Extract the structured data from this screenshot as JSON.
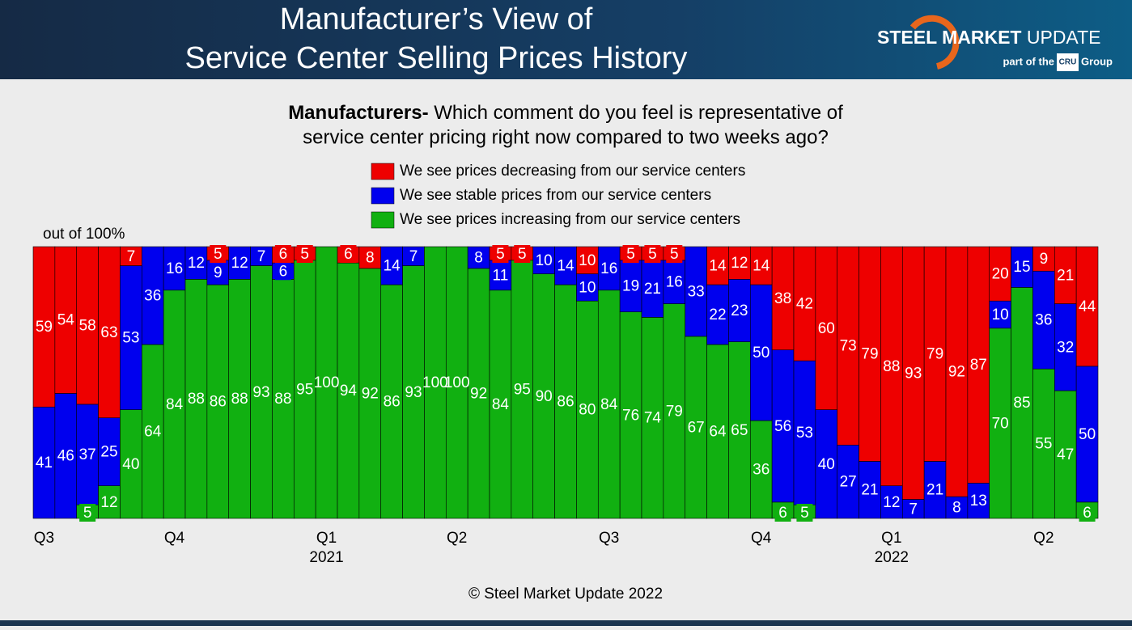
{
  "header": {
    "title": [
      "Manufacturer’s View of",
      "Service Center Selling Prices History"
    ],
    "brand_bold": "STEEL MARKET",
    "brand_rest": "UPDATE",
    "tagline_pre": "part of the",
    "tagline_logo": "CRU",
    "tagline_post": "Group"
  },
  "chart_data": {
    "type": "stacked-bar",
    "subtitle_lead": "Manufacturers-",
    "subtitle_lines": [
      "Which comment do you feel is representative of",
      "service center pricing right now compared to two weeks ago?"
    ],
    "y_label": "out of 100%",
    "footer": "© Steel Market Update 2022",
    "ylim": [
      0,
      100
    ],
    "categories": [
      "Q3",
      null,
      null,
      null,
      null,
      null,
      "Q4",
      null,
      null,
      null,
      null,
      null,
      null,
      "Q1",
      null,
      null,
      null,
      null,
      null,
      "Q2",
      null,
      null,
      null,
      null,
      null,
      null,
      "Q3",
      null,
      null,
      null,
      null,
      null,
      null,
      "Q4",
      null,
      null,
      null,
      null,
      null,
      "Q1",
      null,
      null,
      null,
      null,
      null,
      null,
      "Q2",
      null,
      null
    ],
    "year_labels": [
      null,
      null,
      null,
      null,
      null,
      null,
      null,
      null,
      null,
      null,
      null,
      null,
      null,
      "2021",
      null,
      null,
      null,
      null,
      null,
      null,
      null,
      null,
      null,
      null,
      null,
      null,
      null,
      null,
      null,
      null,
      null,
      null,
      null,
      null,
      null,
      null,
      null,
      null,
      null,
      "2022",
      null,
      null,
      null,
      null,
      null,
      null,
      null,
      null,
      null
    ],
    "series": [
      {
        "name": "We see prices decreasing from our service centers",
        "color": "#ee0000",
        "values": [
          59,
          54,
          58,
          63,
          7,
          0,
          0,
          0,
          5,
          0,
          0,
          6,
          5,
          0,
          6,
          8,
          0,
          0,
          0,
          0,
          0,
          5,
          5,
          0,
          0,
          10,
          0,
          5,
          5,
          5,
          0,
          14,
          12,
          14,
          38,
          42,
          60,
          73,
          79,
          88,
          93,
          79,
          92,
          87,
          20,
          0,
          9,
          21,
          44
        ]
      },
      {
        "name": "We see stable prices from our service centers",
        "color": "#0000ee",
        "values": [
          41,
          46,
          37,
          25,
          53,
          36,
          16,
          12,
          9,
          12,
          7,
          6,
          0,
          0,
          0,
          0,
          14,
          7,
          0,
          0,
          8,
          11,
          0,
          10,
          14,
          10,
          16,
          19,
          21,
          16,
          33,
          22,
          23,
          50,
          56,
          53,
          40,
          27,
          21,
          12,
          7,
          21,
          8,
          13,
          10,
          15,
          36,
          32,
          50
        ]
      },
      {
        "name": "We see prices increasing from our service centers",
        "color": "#11b011",
        "values": [
          0,
          0,
          5,
          12,
          40,
          64,
          84,
          88,
          86,
          88,
          93,
          88,
          95,
          100,
          94,
          92,
          86,
          93,
          100,
          100,
          92,
          84,
          95,
          90,
          86,
          80,
          84,
          76,
          74,
          79,
          67,
          64,
          65,
          36,
          6,
          5,
          0,
          0,
          0,
          0,
          0,
          0,
          0,
          0,
          70,
          85,
          55,
          47,
          6
        ]
      }
    ]
  }
}
